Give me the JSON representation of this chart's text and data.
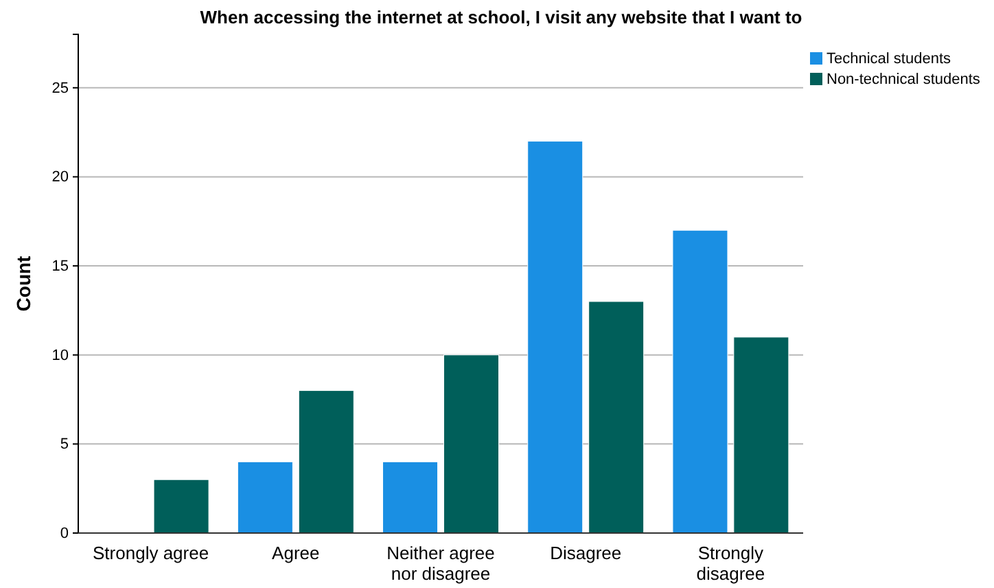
{
  "chart_data": {
    "type": "bar",
    "title": "When accessing the internet at school, I visit any website that I want to",
    "ylabel": "Count",
    "categories": [
      "Strongly agree",
      "Agree",
      "Neither agree nor disagree",
      "Disagree",
      "Strongly disagree"
    ],
    "series": [
      {
        "name": "Technical students",
        "color": "#1a8fe3",
        "values": [
          0,
          4,
          4,
          22,
          17
        ]
      },
      {
        "name": "Non-technical students",
        "color": "#005f5a",
        "values": [
          3,
          8,
          10,
          13,
          11
        ]
      }
    ],
    "ylim": [
      0,
      28
    ],
    "yticks": [
      0,
      5,
      10,
      15,
      20,
      25
    ],
    "grid": "y",
    "legend": "top right"
  }
}
